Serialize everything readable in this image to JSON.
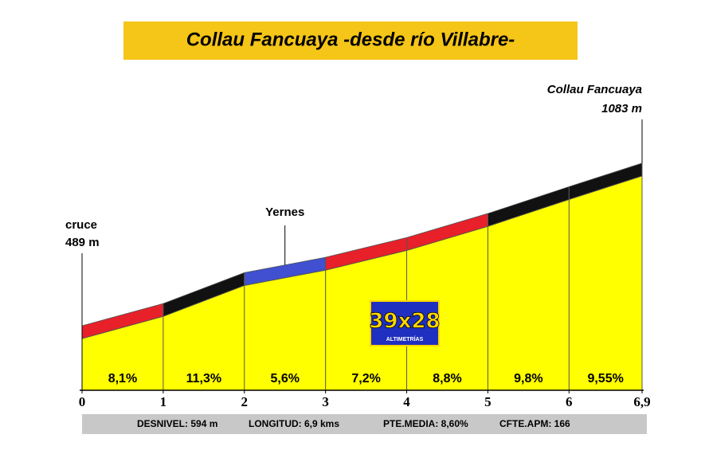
{
  "chart_data": {
    "type": "profile",
    "title": "Collau Fancuaya -desde río Villabre-",
    "x": [
      0,
      1,
      2,
      3,
      4,
      5,
      6,
      6.9
    ],
    "elevations": [
      489,
      570,
      683,
      739,
      811,
      899,
      997,
      1083
    ],
    "gradients": [
      8.1,
      11.3,
      5.6,
      7.2,
      8.8,
      9.8,
      9.55
    ],
    "gradient_labels": [
      "8,1%",
      "11,3%",
      "5,6%",
      "7,2%",
      "8,8%",
      "9,8%",
      "9,55%"
    ],
    "segment_colors": [
      "#e8202a",
      "#111111",
      "#4050d0",
      "#e8202a",
      "#e8202a",
      "#111111",
      "#111111"
    ],
    "fill_color": "#ffff00",
    "xlim": [
      0,
      6.9
    ],
    "xticks": [
      0,
      1,
      2,
      3,
      4,
      5,
      6,
      {
        "value": 6.9,
        "label": "6,9"
      }
    ],
    "ylim": [
      300,
      1100
    ],
    "annotations": [
      {
        "text": [
          "cruce",
          "489 m"
        ],
        "x": 0
      },
      {
        "text": [
          "Yernes"
        ],
        "x": 2.5
      },
      {
        "text": [
          "Collau Fancuaya",
          "1083 m"
        ],
        "x": 6.9
      }
    ],
    "logo": {
      "text": "39x28",
      "subtext": "ALTIMETRÍAS"
    },
    "footer": [
      "DESNIVEL:  594 m",
      "LONGITUD:  6,9 kms",
      "PTE.MEDIA:  8,60%",
      "CFTE.APM:  166"
    ]
  }
}
